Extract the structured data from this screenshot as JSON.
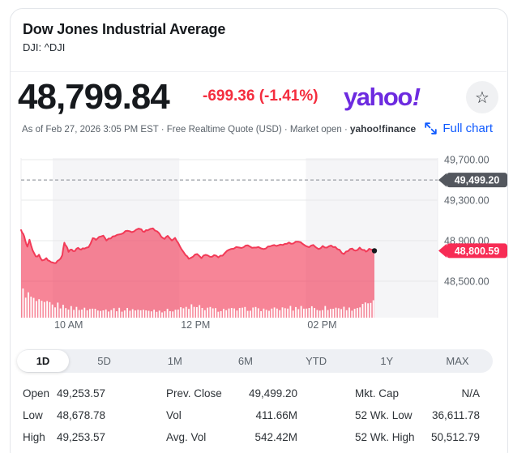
{
  "header": {
    "title": "Dow Jones Industrial Average",
    "symbol_line": "DJI: ^DJI"
  },
  "quote": {
    "price": "48,799.84",
    "change": "-699.36 (-1.41%)",
    "as_of": "As of Feb 27, 2026 3:05 PM EST · Free Realtime Quote (USD) · Market open ·",
    "brand_suffix": "yahoo!finance",
    "logo_text": "yahoo",
    "logo_bang": "!",
    "star_glyph": "☆",
    "full_chart_label": "Full chart"
  },
  "colors": {
    "accent_purple": "#6d2be0",
    "down_red": "#f42d3e",
    "link_blue": "#0f5aff",
    "chart_line": "#f23a57",
    "chart_fill": "rgba(242,58,87,0.62)",
    "prev_close_badge": "#53575e",
    "last_price_badge": "#f72c55",
    "band_gray": "#f5f5f7",
    "grid": "#e7e8ea",
    "axis_text": "#5d646c"
  },
  "chart_data": {
    "type": "area",
    "title": "DJI intraday price with volume",
    "x_unit": "minutes since 09:30 ET",
    "session_end_minute": 335,
    "ylim": [
      48140,
      49716
    ],
    "y_ticks": [
      {
        "value": 49700,
        "label": "49,700.00"
      },
      {
        "value": 49300,
        "label": "49,300.00"
      },
      {
        "value": 48900,
        "label": "48,900.00"
      },
      {
        "value": 48500,
        "label": "48,500.00"
      }
    ],
    "prev_close": {
      "value": 49499.2,
      "label": "49,499.20"
    },
    "last": {
      "value": 48800.59,
      "label": "48,800.59"
    },
    "x_labels": [
      {
        "label": "10 AM",
        "minute": 30
      },
      {
        "label": "12 PM",
        "minute": 150
      },
      {
        "label": "02 PM",
        "minute": 270
      }
    ],
    "gray_band_minutes": [
      [
        30,
        150
      ],
      [
        270,
        395
      ]
    ],
    "points": [
      [
        0,
        49005
      ],
      [
        2,
        48968
      ],
      [
        4,
        48900
      ],
      [
        6,
        48842
      ],
      [
        8,
        48910
      ],
      [
        11,
        48805
      ],
      [
        14,
        48745
      ],
      [
        17,
        48762
      ],
      [
        20,
        48705
      ],
      [
        24,
        48728
      ],
      [
        27,
        48700
      ],
      [
        30,
        48685
      ],
      [
        33,
        48679
      ],
      [
        36,
        48710
      ],
      [
        39,
        48755
      ],
      [
        41,
        48880
      ],
      [
        43,
        48845
      ],
      [
        45,
        48790
      ],
      [
        48,
        48812
      ],
      [
        51,
        48798
      ],
      [
        54,
        48830
      ],
      [
        57,
        48812
      ],
      [
        60,
        48822
      ],
      [
        64,
        48836
      ],
      [
        68,
        48925
      ],
      [
        71,
        48908
      ],
      [
        74,
        48938
      ],
      [
        78,
        48950
      ],
      [
        81,
        48902
      ],
      [
        85,
        48922
      ],
      [
        89,
        48945
      ],
      [
        93,
        48962
      ],
      [
        97,
        48975
      ],
      [
        101,
        48998
      ],
      [
        105,
        48984
      ],
      [
        109,
        49008
      ],
      [
        114,
        49012
      ],
      [
        117,
        48988
      ],
      [
        120,
        49002
      ],
      [
        125,
        49022
      ],
      [
        129,
        48992
      ],
      [
        133,
        48938
      ],
      [
        136,
        48918
      ],
      [
        139,
        48948
      ],
      [
        143,
        48902
      ],
      [
        146,
        48928
      ],
      [
        149,
        48878
      ],
      [
        152,
        48818
      ],
      [
        156,
        48758
      ],
      [
        159,
        48722
      ],
      [
        163,
        48742
      ],
      [
        167,
        48768
      ],
      [
        171,
        48728
      ],
      [
        175,
        48760
      ],
      [
        179,
        48742
      ],
      [
        183,
        48758
      ],
      [
        187,
        48735
      ],
      [
        191,
        48752
      ],
      [
        195,
        48798
      ],
      [
        199,
        48818
      ],
      [
        204,
        48838
      ],
      [
        209,
        48828
      ],
      [
        213,
        48852
      ],
      [
        217,
        48842
      ],
      [
        221,
        48832
      ],
      [
        225,
        48838
      ],
      [
        230,
        48818
      ],
      [
        234,
        48842
      ],
      [
        238,
        48852
      ],
      [
        242,
        48848
      ],
      [
        246,
        48862
      ],
      [
        250,
        48868
      ],
      [
        254,
        48882
      ],
      [
        258,
        48872
      ],
      [
        263,
        48890
      ],
      [
        267,
        48868
      ],
      [
        273,
        48835
      ],
      [
        277,
        48858
      ],
      [
        282,
        48818
      ],
      [
        286,
        48848
      ],
      [
        290,
        48832
      ],
      [
        294,
        48852
      ],
      [
        298,
        48838
      ],
      [
        302,
        48810
      ],
      [
        306,
        48768
      ],
      [
        310,
        48798
      ],
      [
        314,
        48822
      ],
      [
        317,
        48802
      ],
      [
        321,
        48832
      ],
      [
        324,
        48808
      ],
      [
        327,
        48792
      ],
      [
        330,
        48820
      ],
      [
        335,
        48800.59
      ]
    ],
    "volume_profile": [
      [
        0,
        1.0
      ],
      [
        2,
        0.94
      ],
      [
        5,
        0.82
      ],
      [
        8,
        0.72
      ],
      [
        11,
        0.62
      ],
      [
        15,
        0.55
      ],
      [
        18,
        0.5
      ],
      [
        23,
        0.47
      ],
      [
        26,
        0.5
      ],
      [
        30,
        0.41
      ],
      [
        34,
        0.44
      ],
      [
        38,
        0.38
      ],
      [
        41,
        0.41
      ],
      [
        45,
        0.35
      ],
      [
        49,
        0.32
      ],
      [
        53,
        0.35
      ],
      [
        57,
        0.3
      ],
      [
        65,
        0.3
      ],
      [
        72,
        0.32
      ],
      [
        80,
        0.27
      ],
      [
        88,
        0.3
      ],
      [
        95,
        0.27
      ],
      [
        103,
        0.3
      ],
      [
        111,
        0.27
      ],
      [
        118,
        0.24
      ],
      [
        126,
        0.27
      ],
      [
        134,
        0.24
      ],
      [
        141,
        0.27
      ],
      [
        149,
        0.3
      ],
      [
        157,
        0.35
      ],
      [
        161,
        0.41
      ],
      [
        165,
        0.32
      ],
      [
        168,
        0.38
      ],
      [
        172,
        0.3
      ],
      [
        176,
        0.35
      ],
      [
        180,
        0.3
      ],
      [
        187,
        0.27
      ],
      [
        195,
        0.3
      ],
      [
        203,
        0.27
      ],
      [
        210,
        0.3
      ],
      [
        218,
        0.32
      ],
      [
        226,
        0.3
      ],
      [
        233,
        0.27
      ],
      [
        241,
        0.3
      ],
      [
        249,
        0.32
      ],
      [
        253,
        0.38
      ],
      [
        257,
        0.3
      ],
      [
        261,
        0.35
      ],
      [
        264,
        0.41
      ],
      [
        268,
        0.32
      ],
      [
        272,
        0.38
      ],
      [
        276,
        0.35
      ],
      [
        280,
        0.3
      ],
      [
        284,
        0.32
      ],
      [
        288,
        0.35
      ],
      [
        292,
        0.3
      ],
      [
        296,
        0.32
      ],
      [
        300,
        0.38
      ],
      [
        303,
        0.32
      ],
      [
        307,
        0.35
      ],
      [
        311,
        0.3
      ],
      [
        314,
        0.32
      ],
      [
        317,
        0.35
      ],
      [
        320,
        0.38
      ],
      [
        323,
        0.41
      ],
      [
        326,
        0.47
      ],
      [
        329,
        0.53
      ],
      [
        331,
        0.44
      ],
      [
        333,
        0.5
      ],
      [
        335,
        0.47
      ]
    ]
  },
  "range_tabs": [
    {
      "label": "1D",
      "active": true
    },
    {
      "label": "5D",
      "active": false
    },
    {
      "label": "1M",
      "active": false
    },
    {
      "label": "6M",
      "active": false
    },
    {
      "label": "YTD",
      "active": false
    },
    {
      "label": "1Y",
      "active": false
    },
    {
      "label": "MAX",
      "active": false
    }
  ],
  "stats": {
    "rows": [
      [
        {
          "label": "Open",
          "value": "49,253.57"
        },
        {
          "label": "Prev. Close",
          "value": "49,499.20"
        },
        {
          "label": "Mkt. Cap",
          "value": "N/A"
        }
      ],
      [
        {
          "label": "Low",
          "value": "48,678.78"
        },
        {
          "label": "Vol",
          "value": "411.66M"
        },
        {
          "label": "52 Wk. Low",
          "value": "36,611.78"
        }
      ],
      [
        {
          "label": "High",
          "value": "49,253.57"
        },
        {
          "label": "Avg. Vol",
          "value": "542.42M"
        },
        {
          "label": "52 Wk. High",
          "value": "50,512.79"
        }
      ]
    ]
  }
}
